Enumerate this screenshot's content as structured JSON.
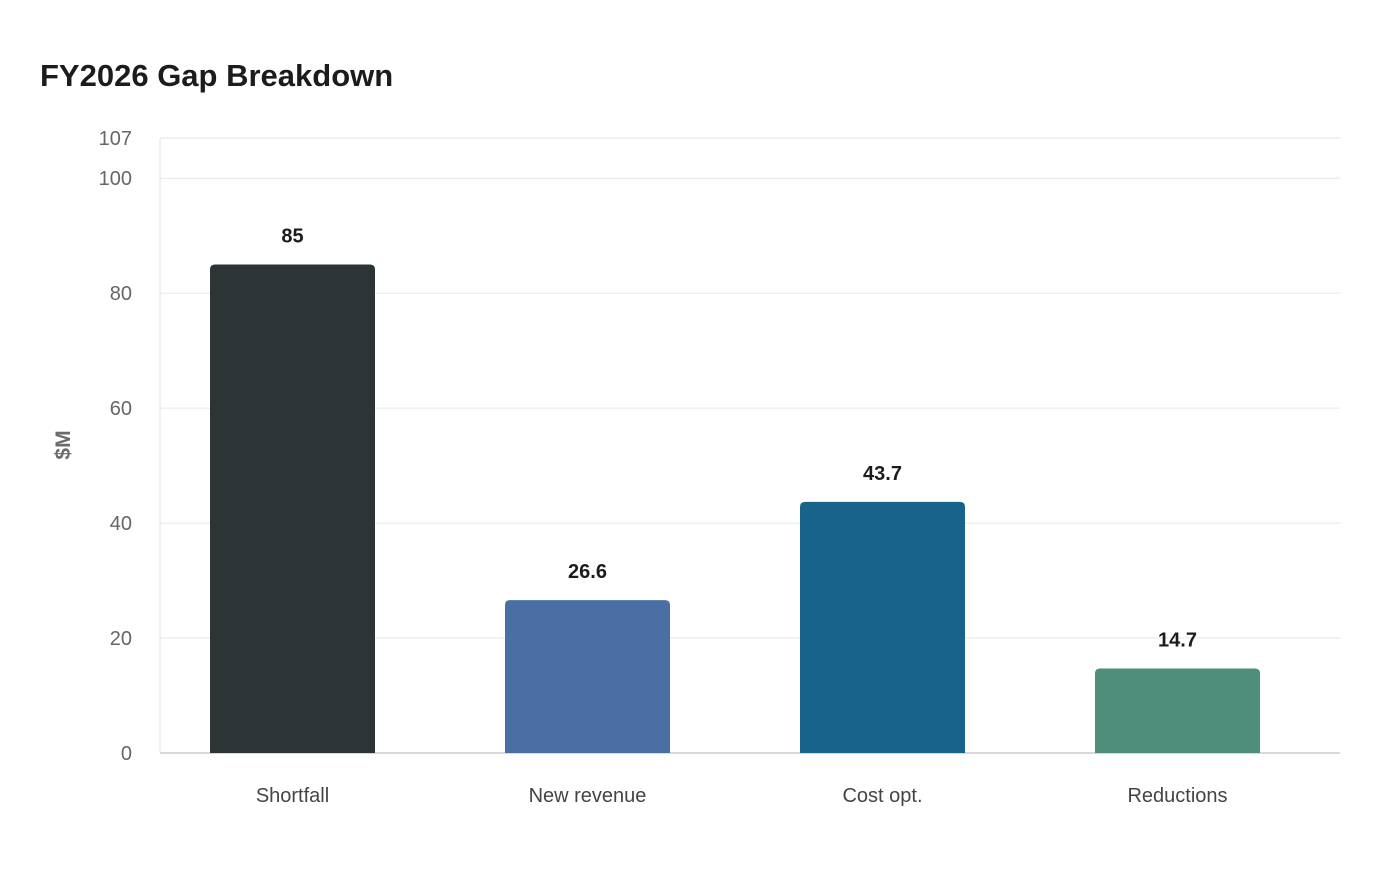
{
  "chart_data": {
    "type": "bar",
    "title": "FY2026 Gap Breakdown",
    "xlabel": "",
    "ylabel": "$M",
    "categories": [
      "Shortfall",
      "New revenue",
      "Cost opt.",
      "Reductions"
    ],
    "values": [
      85,
      26.6,
      43.7,
      14.7
    ],
    "value_labels": [
      "85",
      "26.6",
      "43.7",
      "14.7"
    ],
    "colors": [
      "#2d3436",
      "#4a6fa5",
      "#18638a",
      "#4e8e7a"
    ],
    "ylim": [
      0,
      107
    ],
    "yticks": [
      0,
      20,
      40,
      60,
      80,
      100,
      107
    ],
    "grid": true,
    "legend": "none"
  }
}
